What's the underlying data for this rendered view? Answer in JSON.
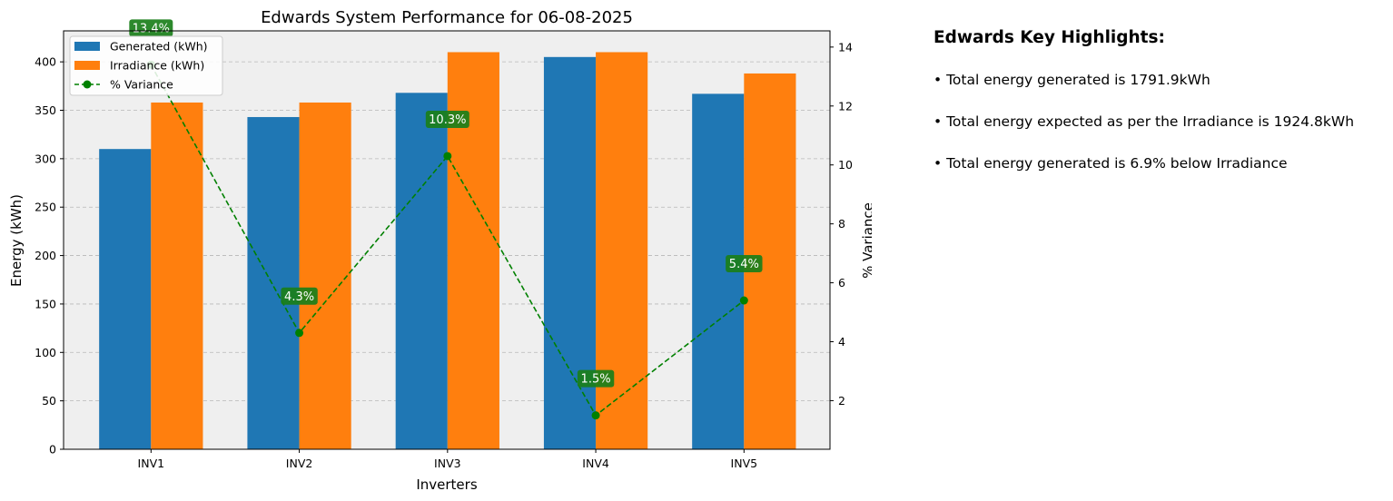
{
  "chart_data": {
    "type": "bar",
    "title": "Edwards System Performance for 06-08-2025",
    "xlabel": "Inverters",
    "ylabel": "Energy (kWh)",
    "y2label": "% Variance",
    "categories": [
      "INV1",
      "INV2",
      "INV3",
      "INV4",
      "INV5"
    ],
    "ylim": [
      0,
      432
    ],
    "yticks": [
      0,
      50,
      100,
      150,
      200,
      250,
      300,
      350,
      400
    ],
    "y2lim": [
      0.35,
      14.55
    ],
    "y2ticks": [
      2,
      4,
      6,
      8,
      10,
      12,
      14
    ],
    "series": [
      {
        "name": "Generated (kWh)",
        "type": "bar",
        "color": "#1f77b4",
        "values": [
          310,
          343,
          368,
          405,
          367
        ]
      },
      {
        "name": "Irradiance (kWh)",
        "type": "bar",
        "color": "#ff7f0e",
        "values": [
          358,
          358,
          410,
          410,
          388
        ]
      },
      {
        "name": "% Variance",
        "type": "line",
        "axis": "right",
        "style": "dashed",
        "marker": "circle",
        "color": "#008000",
        "values": [
          13.4,
          4.3,
          10.3,
          1.5,
          5.4
        ],
        "labels": [
          "13.4%",
          "4.3%",
          "10.3%",
          "1.5%",
          "5.4%"
        ]
      }
    ],
    "grid": "y-dashed",
    "legend_position": "top-left"
  },
  "highlights": {
    "title": "Edwards Key Highlights:",
    "items": [
      "• Total energy generated is 1791.9kWh",
      "• Total energy expected as per the Irradiance is 1924.8kWh",
      "• Total energy generated is 6.9% below Irradiance"
    ]
  }
}
